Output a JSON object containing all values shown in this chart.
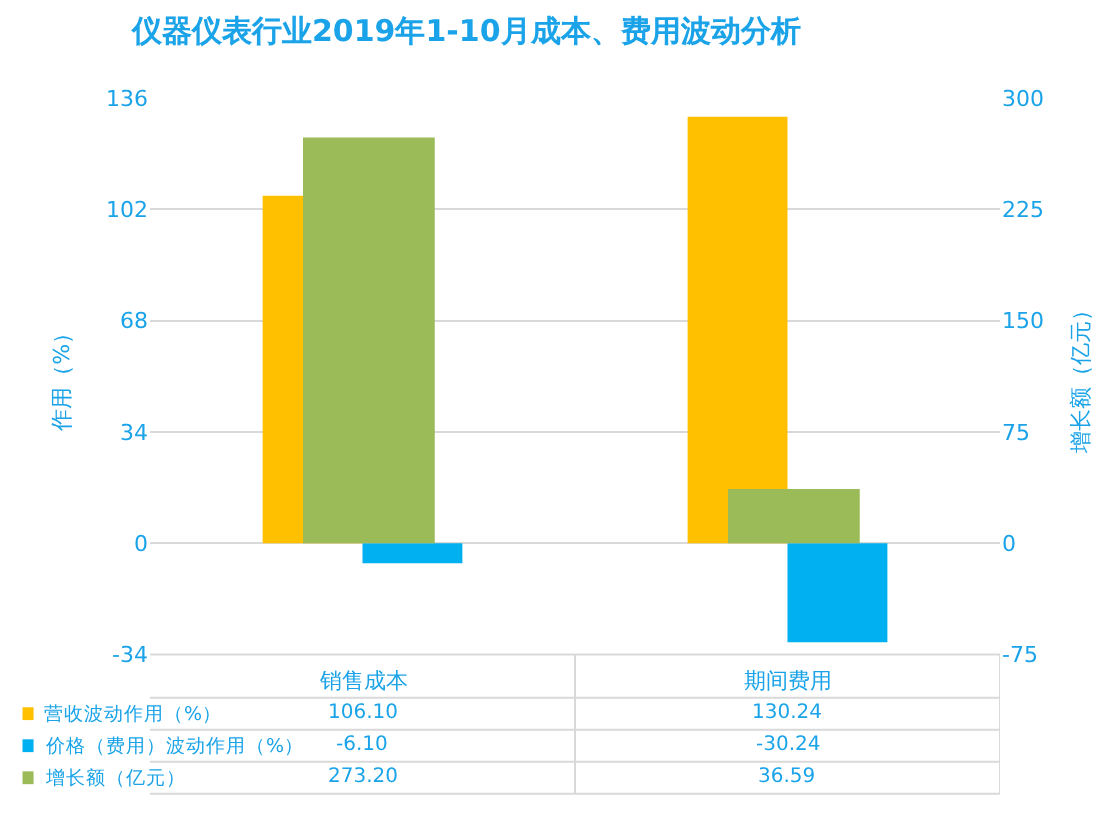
{
  "chart_data": {
    "type": "bar",
    "title": "仪器仪表行业2019年1-10月成本、费用波动分析",
    "ylabel": "作用（%）",
    "y2label": "增长额（亿元）",
    "categories": [
      "销售成本",
      "期间费用"
    ],
    "series": [
      {
        "name": "营收波动作用（%）",
        "color": "#ffc000",
        "values": [
          106.1,
          130.24
        ],
        "value_labels": [
          "106.10",
          "130.24"
        ]
      },
      {
        "name": "价格（费用）波动作用（%）",
        "color": "#00b0f0",
        "values": [
          -6.1,
          -30.24
        ],
        "value_labels": [
          "-6.10",
          "-30.24"
        ]
      },
      {
        "name": "增长额（亿元）",
        "color": "#9bbb59",
        "values": [
          273.2,
          36.59
        ],
        "value_labels": [
          "273.20",
          "36.59"
        ],
        "axis": "y2"
      }
    ],
    "ylim": [
      -34,
      136
    ],
    "yticks": [
      -34,
      0,
      34,
      68,
      102,
      136
    ],
    "y2lim": [
      -75,
      300
    ],
    "y2ticks": [
      -75,
      0,
      75,
      150,
      225,
      300
    ],
    "grid": "y",
    "legend": "bottom"
  }
}
